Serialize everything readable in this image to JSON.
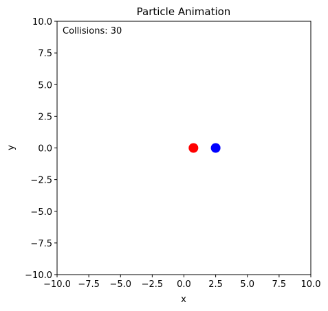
{
  "chart_data": {
    "type": "scatter",
    "title": "Particle Animation",
    "xlabel": "x",
    "ylabel": "y",
    "xlim": [
      -10,
      10
    ],
    "ylim": [
      -10,
      10
    ],
    "xticks": [
      -10,
      -7.5,
      -5,
      -2.5,
      0,
      2.5,
      5,
      7.5,
      10
    ],
    "yticks": [
      -10,
      -7.5,
      -5,
      -2.5,
      0,
      2.5,
      5,
      7.5,
      10
    ],
    "xtick_labels": [
      "−10.0",
      "−7.5",
      "−5.0",
      "−2.5",
      "0.0",
      "2.5",
      "5.0",
      "7.5",
      "10.0"
    ],
    "ytick_labels": [
      "−10.0",
      "−7.5",
      "−5.0",
      "−2.5",
      "0.0",
      "2.5",
      "5.0",
      "7.5",
      "10.0"
    ],
    "grid": false,
    "annotation": "Collisions: 30",
    "points": [
      {
        "x": 0.75,
        "y": 0.0,
        "color": "#ff0000"
      },
      {
        "x": 2.5,
        "y": 0.0,
        "color": "#0000ff"
      }
    ]
  }
}
